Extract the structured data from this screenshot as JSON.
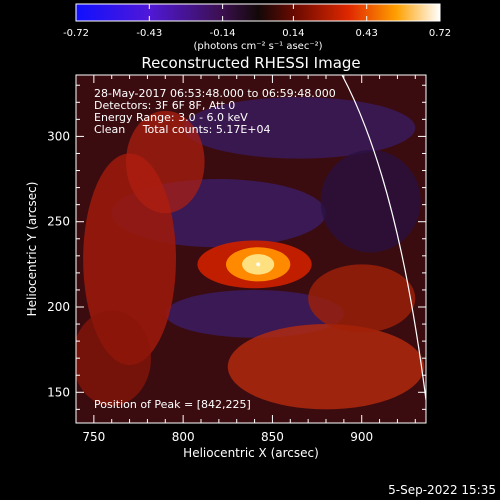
{
  "chart_data": {
    "type": "heatmap",
    "title": "Reconstructed RHESSI Image",
    "xlabel": "Heliocentric X (arcsec)",
    "ylabel": "Heliocentric Y (arcsec)",
    "xlim": [
      740,
      936
    ],
    "ylim": [
      132,
      336
    ],
    "x_ticks": [
      750,
      800,
      850,
      900
    ],
    "y_ticks": [
      150,
      200,
      250,
      300
    ],
    "colorbar": {
      "ticks": [
        "-0.72",
        "-0.43",
        "-0.14",
        "0.14",
        "0.43",
        "0.72"
      ],
      "tick_values": [
        -0.72,
        -0.43,
        -0.14,
        0.14,
        0.43,
        0.72
      ],
      "unit_label": "(photons cm⁻² s⁻¹ asec⁻²)",
      "range": [
        -0.72,
        0.72
      ]
    },
    "annotations": [
      "28-May-2017 06:53:48.000 to 06:59:48.000",
      "Detectors: 3F 6F 8F, Att 0",
      "Energy Range: 3.0 - 6.0 keV",
      "Clean     Total counts: 5.17E+04"
    ],
    "peak_label": "Position of Peak = [842,225]",
    "peak": [
      842,
      225
    ],
    "timestamp": "5-Sep-2022 15:35"
  }
}
